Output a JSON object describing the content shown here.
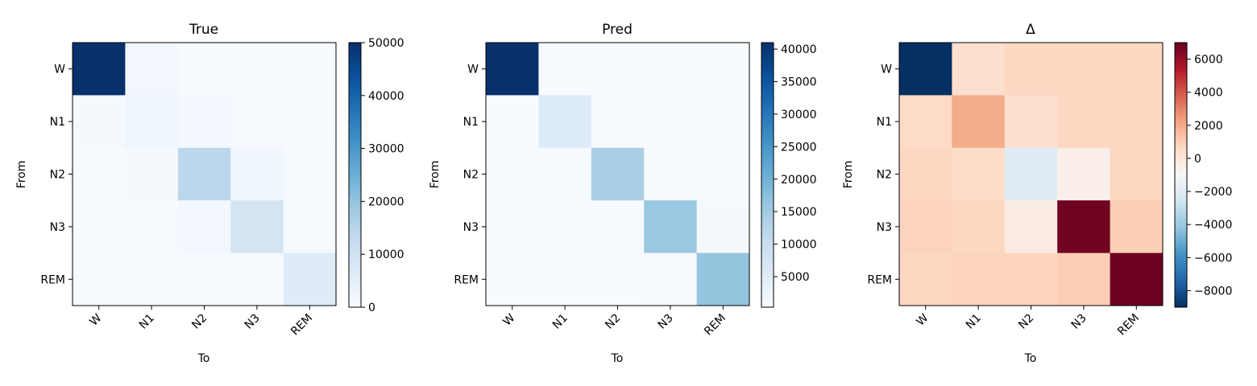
{
  "chart_data": [
    {
      "type": "heatmap",
      "title": "True",
      "xlabel": "To",
      "ylabel": "From",
      "x_categories": [
        "W",
        "N1",
        "N2",
        "N3",
        "REM"
      ],
      "y_categories": [
        "W",
        "N1",
        "N2",
        "N3",
        "REM"
      ],
      "values": [
        [
          50000,
          1500,
          400,
          300,
          300
        ],
        [
          700,
          2300,
          1300,
          200,
          200
        ],
        [
          400,
          700,
          14000,
          1800,
          400
        ],
        [
          300,
          300,
          1000,
          9000,
          500
        ],
        [
          500,
          400,
          300,
          300,
          6000
        ]
      ],
      "colormap": "Blues",
      "colorbar": {
        "min": 0,
        "max": 50000,
        "ticks": [
          0,
          10000,
          20000,
          30000,
          40000,
          50000
        ],
        "tick_labels": [
          "0",
          "10000",
          "20000",
          "30000",
          "40000",
          "50000"
        ]
      }
    },
    {
      "type": "heatmap",
      "title": "Pred",
      "xlabel": "To",
      "ylabel": "From",
      "x_categories": [
        "W",
        "N1",
        "N2",
        "N3",
        "REM"
      ],
      "y_categories": [
        "W",
        "N1",
        "N2",
        "N3",
        "REM"
      ],
      "values": [
        [
          41000,
          300,
          200,
          200,
          200
        ],
        [
          300,
          5600,
          500,
          200,
          200
        ],
        [
          300,
          400,
          14000,
          500,
          300
        ],
        [
          200,
          200,
          400,
          16000,
          800
        ],
        [
          300,
          200,
          200,
          500,
          16500
        ]
      ],
      "colormap": "Blues",
      "colorbar": {
        "min": 300,
        "max": 41000,
        "ticks": [
          5000,
          10000,
          15000,
          20000,
          25000,
          30000,
          35000,
          40000
        ],
        "tick_labels": [
          "5000",
          "10000",
          "15000",
          "20000",
          "25000",
          "30000",
          "35000",
          "40000"
        ]
      }
    },
    {
      "type": "heatmap",
      "title": "Δ",
      "xlabel": "To",
      "ylabel": "From",
      "x_categories": [
        "W",
        "N1",
        "N2",
        "N3",
        "REM"
      ],
      "y_categories": [
        "W",
        "N1",
        "N2",
        "N3",
        "REM"
      ],
      "values": [
        [
          -9000,
          350,
          700,
          700,
          700
        ],
        [
          600,
          2000,
          300,
          700,
          700
        ],
        [
          700,
          500,
          -2000,
          -500,
          700
        ],
        [
          800,
          700,
          -300,
          6800,
          1000
        ],
        [
          700,
          800,
          800,
          1000,
          6900
        ]
      ],
      "colormap": "RdBu_r",
      "colorbar": {
        "min": -9000,
        "max": 7000,
        "ticks": [
          -8000,
          -6000,
          -4000,
          -2000,
          0,
          2000,
          4000,
          6000
        ],
        "tick_labels": [
          "−8000",
          "−6000",
          "−4000",
          "−2000",
          "0",
          "2000",
          "4000",
          "6000"
        ]
      }
    }
  ]
}
